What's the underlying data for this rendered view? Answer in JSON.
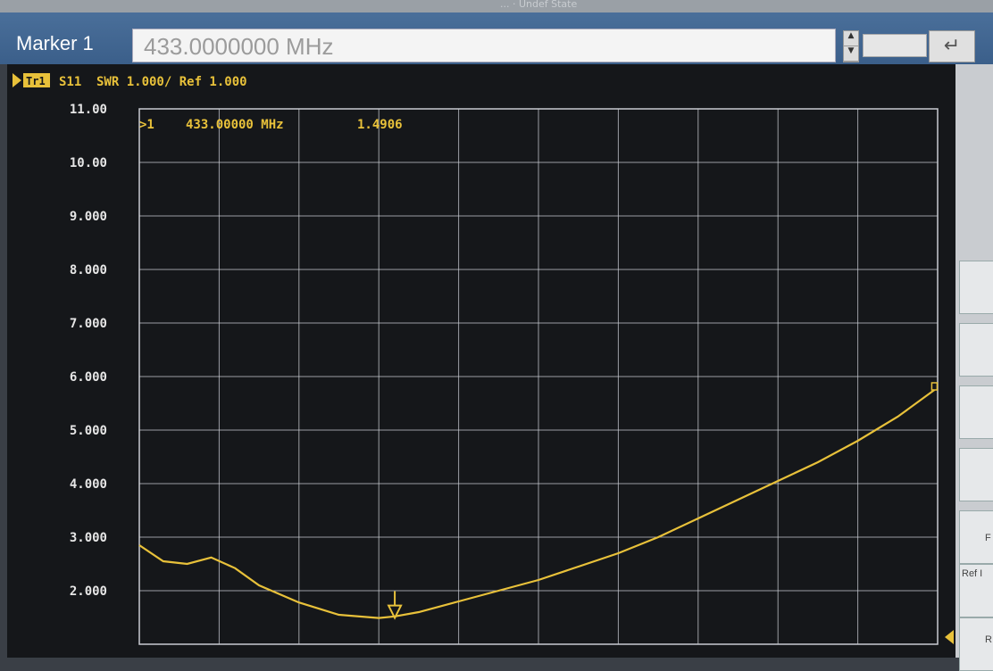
{
  "marker": {
    "label": "Marker 1",
    "value": "433.0000000 MHz",
    "enter_glyph": "↵"
  },
  "header_partial": "... · Undef State",
  "trace": {
    "badge": "Tr1",
    "param": "S11",
    "format": "SWR 1.000/ Ref 1.000"
  },
  "marker_readout": {
    "id": ">1",
    "frequency": "433.00000 MHz",
    "value": "1.4906"
  },
  "right_panel": {
    "label_a": "F",
    "label_b": "Ref I",
    "label_c": "R"
  },
  "colors": {
    "trace": "#e8c13a",
    "grid": "#c9ccd2",
    "background": "#15171a",
    "text": "#e6e6e6"
  },
  "chart_data": {
    "type": "line",
    "title": "",
    "xlabel": "",
    "ylabel": "",
    "ylim": [
      1.0,
      11.0
    ],
    "y_ticks": [
      "11.00",
      "10.00",
      "9.000",
      "8.000",
      "7.000",
      "6.000",
      "5.000",
      "4.000",
      "3.000",
      "2.000"
    ],
    "x_divisions": 10,
    "grid": true,
    "series": [
      {
        "x": [
          0.0,
          0.3,
          0.6,
          0.9,
          1.2,
          1.5,
          2.0,
          2.5,
          3.0,
          3.2,
          3.5,
          4.0,
          4.5,
          5.0,
          5.5,
          6.0,
          6.5,
          7.0,
          7.5,
          8.0,
          8.5,
          9.0,
          9.5,
          9.96
        ],
        "values": [
          2.85,
          2.55,
          2.5,
          2.62,
          2.42,
          2.1,
          1.78,
          1.55,
          1.49,
          1.52,
          1.6,
          1.8,
          2.0,
          2.2,
          2.45,
          2.7,
          3.0,
          3.35,
          3.7,
          4.05,
          4.4,
          4.8,
          5.25,
          5.75
        ]
      }
    ],
    "marker": {
      "x": 3.2,
      "y": 1.4906
    }
  }
}
